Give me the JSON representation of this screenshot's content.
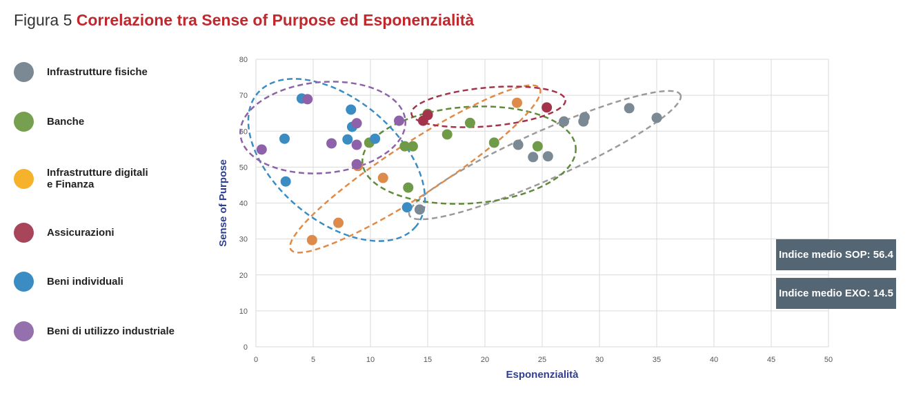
{
  "title": {
    "prefix": "Figura 5",
    "main": "Correlazione tra Sense of Purpose ed Esponenzialità"
  },
  "indices": {
    "sop": "Indice medio SOP: 56.4",
    "exo": "Indice medio EXO: 14.5"
  },
  "chart_data": {
    "type": "scatter",
    "xlabel": "Esponenzialità",
    "ylabel": "Sense of Purpose",
    "xlim": [
      0,
      50
    ],
    "ylim": [
      0,
      80
    ],
    "xticks": [
      "0",
      "5",
      "10",
      "15",
      "20",
      "25",
      "30",
      "35",
      "40",
      "45",
      "50"
    ],
    "yticks": [
      "0",
      "10",
      "20",
      "30",
      "40",
      "50",
      "60",
      "70",
      "80"
    ],
    "grid": true,
    "legend_position": "left",
    "series": [
      {
        "name": "Infrastrutture fisiche",
        "color": "#7b8994",
        "legend_color": "#7b8994",
        "ellipse_color": "#9a9a9a",
        "points": [
          [
            22.9,
            56.2
          ],
          [
            24.2,
            52.8
          ],
          [
            25.5,
            53
          ],
          [
            26.9,
            62.7
          ],
          [
            28.6,
            62.7
          ],
          [
            28.7,
            63.9
          ],
          [
            32.6,
            66.4
          ],
          [
            35,
            63.7
          ],
          [
            14.3,
            38.2
          ]
        ]
      },
      {
        "name": "Banche",
        "color": "#6f9a48",
        "legend_color": "#76a04f",
        "ellipse_color": "#5e8a3a",
        "points": [
          [
            9.9,
            56.8
          ],
          [
            13,
            55.8
          ],
          [
            13.7,
            55.8
          ],
          [
            13.3,
            44.3
          ],
          [
            15,
            64.8
          ],
          [
            16.7,
            59.1
          ],
          [
            18.7,
            62.3
          ],
          [
            20.8,
            56.8
          ],
          [
            24.6,
            55.8
          ]
        ]
      },
      {
        "name": "Infrastrutture digitali\ne Finanza",
        "color": "#dd8a4a",
        "legend_color": "#f5b22a",
        "ellipse_color": "#e08a45",
        "points": [
          [
            4.9,
            29.7
          ],
          [
            7.2,
            34.5
          ],
          [
            8.9,
            50.3
          ],
          [
            11.1,
            47
          ],
          [
            22.8,
            67.9
          ]
        ]
      },
      {
        "name": "Assicurazioni",
        "color": "#a3334b",
        "legend_color": "#a8455a",
        "ellipse_color": "#a3334b",
        "points": [
          [
            14.6,
            62.9
          ],
          [
            15,
            64.5
          ],
          [
            25.4,
            66.6
          ]
        ]
      },
      {
        "name": "Beni individuali",
        "color": "#3a8cc3",
        "legend_color": "#3a8cc3",
        "ellipse_color": "#3a8cc3",
        "points": [
          [
            2.5,
            57.9
          ],
          [
            2.6,
            46
          ],
          [
            4,
            69.1
          ],
          [
            8.3,
            66
          ],
          [
            8.4,
            61.2
          ],
          [
            8,
            57.7
          ],
          [
            10.4,
            57.9
          ],
          [
            13.2,
            38.8
          ]
        ]
      },
      {
        "name": "Beni di utilizzo industriale",
        "color": "#8d62a8",
        "legend_color": "#9470ac",
        "ellipse_color": "#8d62a8",
        "points": [
          [
            0.5,
            54.9
          ],
          [
            4.5,
            68.9
          ],
          [
            6.6,
            56.6
          ],
          [
            8.8,
            62.2
          ],
          [
            8.8,
            56.2
          ],
          [
            8.8,
            50.8
          ],
          [
            12.5,
            62.9
          ]
        ]
      }
    ]
  }
}
